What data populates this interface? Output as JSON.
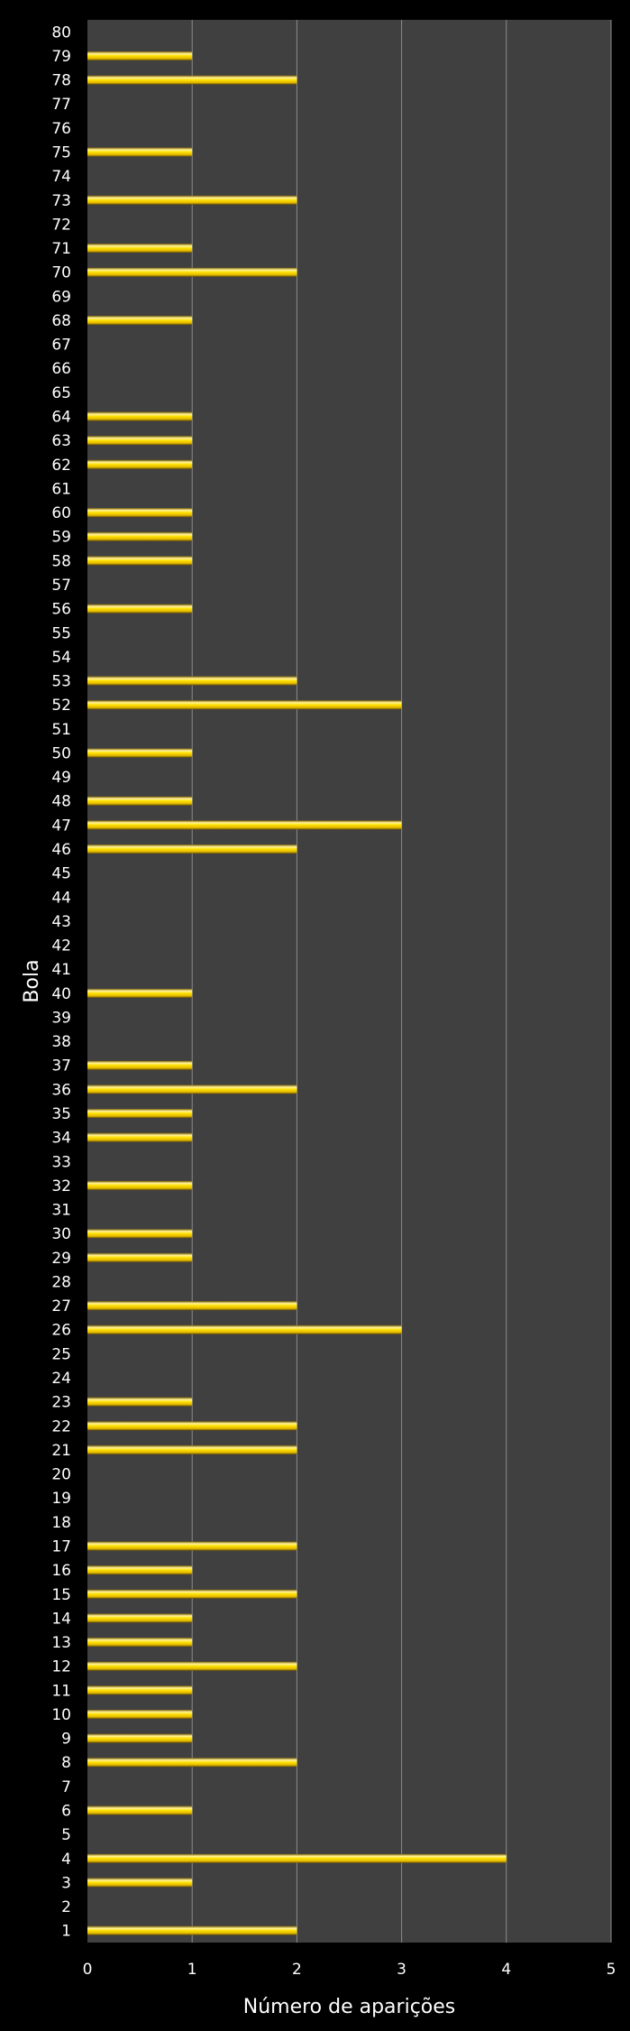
{
  "chart_data": {
    "type": "bar",
    "orientation": "horizontal",
    "title": "",
    "xlabel": "Número de aparições",
    "ylabel": "Bola",
    "xlim": [
      0,
      5
    ],
    "xticks": [
      "0",
      "1",
      "2",
      "3",
      "4",
      "5"
    ],
    "grid": true,
    "legend": "none",
    "colors": {
      "background": "#000000",
      "plot_area": "#404040",
      "bar": "#ffd700",
      "bar_highlight": "#fff9b0",
      "bar_shadow": "#8a6d00",
      "gridline": "#8c8c8c",
      "text": "#ffffff"
    },
    "categories": [
      "1",
      "2",
      "3",
      "4",
      "5",
      "6",
      "7",
      "8",
      "9",
      "10",
      "11",
      "12",
      "13",
      "14",
      "15",
      "16",
      "17",
      "18",
      "19",
      "20",
      "21",
      "22",
      "23",
      "24",
      "25",
      "26",
      "27",
      "28",
      "29",
      "30",
      "31",
      "32",
      "33",
      "34",
      "35",
      "36",
      "37",
      "38",
      "39",
      "40",
      "41",
      "42",
      "43",
      "44",
      "45",
      "46",
      "47",
      "48",
      "49",
      "50",
      "51",
      "52",
      "53",
      "54",
      "55",
      "56",
      "57",
      "58",
      "59",
      "60",
      "61",
      "62",
      "63",
      "64",
      "65",
      "66",
      "67",
      "68",
      "69",
      "70",
      "71",
      "72",
      "73",
      "74",
      "75",
      "76",
      "77",
      "78",
      "79",
      "80"
    ],
    "values": [
      2,
      0,
      1,
      4,
      0,
      1,
      0,
      2,
      1,
      1,
      1,
      2,
      1,
      1,
      2,
      1,
      2,
      0,
      0,
      0,
      2,
      2,
      1,
      0,
      0,
      3,
      2,
      0,
      1,
      1,
      0,
      1,
      0,
      1,
      1,
      2,
      1,
      0,
      0,
      1,
      0,
      0,
      0,
      0,
      0,
      2,
      3,
      1,
      0,
      1,
      0,
      3,
      2,
      0,
      0,
      1,
      0,
      1,
      1,
      1,
      0,
      1,
      1,
      1,
      0,
      0,
      0,
      1,
      0,
      2,
      1,
      0,
      2,
      0,
      1,
      0,
      0,
      2,
      1,
      0
    ]
  }
}
